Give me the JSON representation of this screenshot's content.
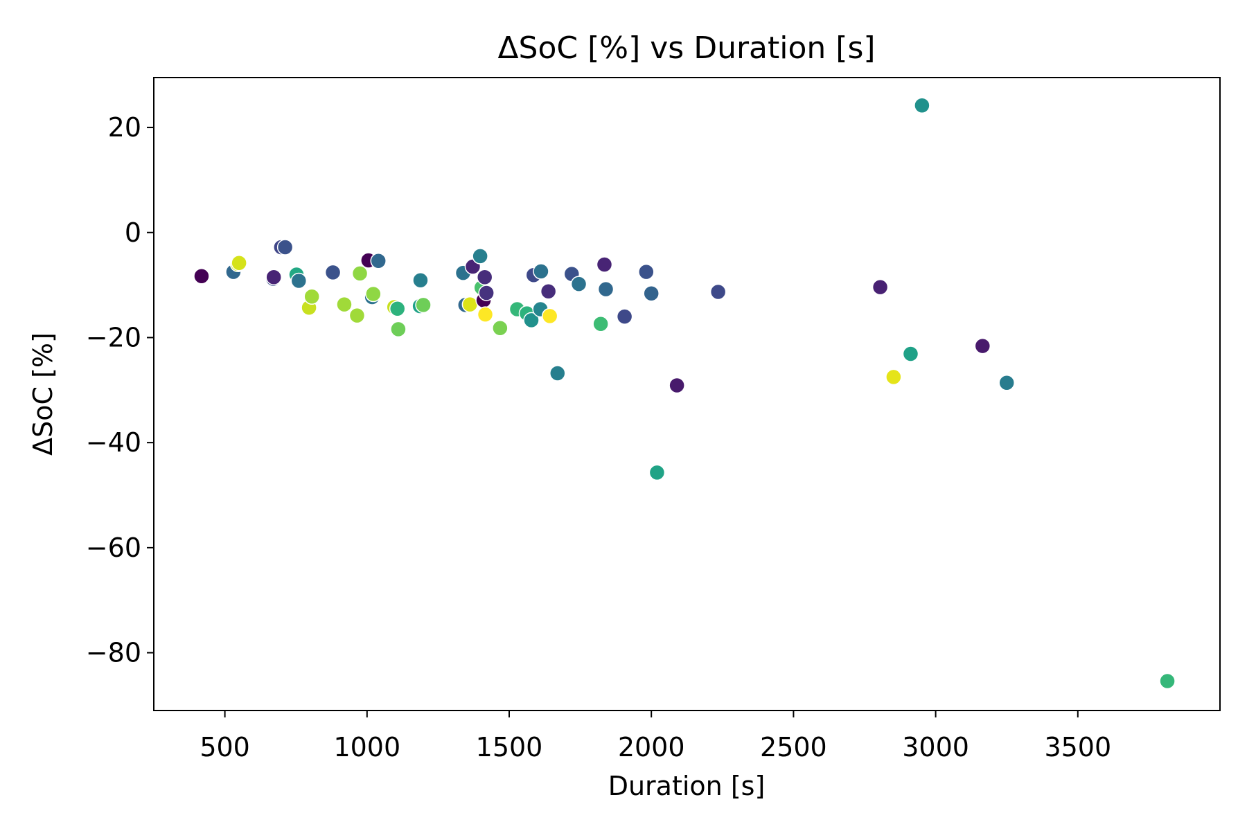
{
  "chart_data": {
    "type": "scatter",
    "title": "ΔSoC [%] vs Duration [s]",
    "xlabel": "Duration [s]",
    "ylabel": "ΔSoC [%]",
    "xlim": [
      250,
      4000
    ],
    "ylim": [
      -91,
      29.5
    ],
    "xticks": [
      500,
      1000,
      1500,
      2000,
      2500,
      3000,
      3500
    ],
    "xtick_labels": [
      "500",
      "1000",
      "1500",
      "2000",
      "2500",
      "3000",
      "3500"
    ],
    "yticks": [
      20,
      0,
      -20,
      -40,
      -60,
      -80
    ],
    "ytick_labels": [
      "20",
      "0",
      "−20",
      "−40",
      "−60",
      "−80"
    ],
    "grid": false,
    "colormap": "viridis",
    "points": [
      {
        "x": 418,
        "y": -8.3,
        "color": "#440154"
      },
      {
        "x": 530,
        "y": -7.5,
        "color": "#31688e"
      },
      {
        "x": 546,
        "y": -6.0,
        "color": "#c8e020"
      },
      {
        "x": 550,
        "y": -5.8,
        "color": "#d5e21a"
      },
      {
        "x": 670,
        "y": -8.8,
        "color": "#3b528b"
      },
      {
        "x": 672,
        "y": -8.5,
        "color": "#482475"
      },
      {
        "x": 698,
        "y": -2.8,
        "color": "#404688"
      },
      {
        "x": 712,
        "y": -2.8,
        "color": "#3b528b"
      },
      {
        "x": 752,
        "y": -8.0,
        "color": "#22a884"
      },
      {
        "x": 760,
        "y": -9.2,
        "color": "#2c728e"
      },
      {
        "x": 796,
        "y": -14.3,
        "color": "#c8e020"
      },
      {
        "x": 806,
        "y": -12.2,
        "color": "#a0da39"
      },
      {
        "x": 880,
        "y": -7.6,
        "color": "#3b528b"
      },
      {
        "x": 920,
        "y": -13.7,
        "color": "#a0da39"
      },
      {
        "x": 965,
        "y": -15.8,
        "color": "#a0da39"
      },
      {
        "x": 975,
        "y": -7.8,
        "color": "#8fd744"
      },
      {
        "x": 1005,
        "y": -5.3,
        "color": "#440154"
      },
      {
        "x": 1018,
        "y": -12.3,
        "color": "#2c728e"
      },
      {
        "x": 1022,
        "y": -11.7,
        "color": "#8fd744"
      },
      {
        "x": 1040,
        "y": -5.4,
        "color": "#31688e"
      },
      {
        "x": 1096,
        "y": -14.2,
        "color": "#c8e020"
      },
      {
        "x": 1107,
        "y": -14.5,
        "color": "#2db27d"
      },
      {
        "x": 1110,
        "y": -18.4,
        "color": "#6ece58"
      },
      {
        "x": 1186,
        "y": -14.0,
        "color": "#1fa187"
      },
      {
        "x": 1188,
        "y": -9.1,
        "color": "#277f8e"
      },
      {
        "x": 1198,
        "y": -13.8,
        "color": "#6ece58"
      },
      {
        "x": 1338,
        "y": -7.7,
        "color": "#2c728e"
      },
      {
        "x": 1346,
        "y": -13.8,
        "color": "#31688e"
      },
      {
        "x": 1362,
        "y": -13.7,
        "color": "#dde318"
      },
      {
        "x": 1372,
        "y": -6.5,
        "color": "#482475"
      },
      {
        "x": 1398,
        "y": -4.5,
        "color": "#277f8e"
      },
      {
        "x": 1403,
        "y": -10.5,
        "color": "#4ac16d"
      },
      {
        "x": 1410,
        "y": -12.9,
        "color": "#440154"
      },
      {
        "x": 1414,
        "y": -8.5,
        "color": "#472d7b"
      },
      {
        "x": 1416,
        "y": -15.6,
        "color": "#fde725"
      },
      {
        "x": 1420,
        "y": -11.5,
        "color": "#46327e"
      },
      {
        "x": 1468,
        "y": -18.2,
        "color": "#7ad151"
      },
      {
        "x": 1528,
        "y": -14.6,
        "color": "#35b779"
      },
      {
        "x": 1562,
        "y": -15.4,
        "color": "#2db27d"
      },
      {
        "x": 1578,
        "y": -16.7,
        "color": "#21918c"
      },
      {
        "x": 1586,
        "y": -8.1,
        "color": "#3e4989"
      },
      {
        "x": 1610,
        "y": -14.6,
        "color": "#25858e"
      },
      {
        "x": 1612,
        "y": -7.4,
        "color": "#2c728e"
      },
      {
        "x": 1638,
        "y": -11.2,
        "color": "#472d7b"
      },
      {
        "x": 1643,
        "y": -15.9,
        "color": "#fde725"
      },
      {
        "x": 1670,
        "y": -26.8,
        "color": "#277f8e"
      },
      {
        "x": 1720,
        "y": -7.9,
        "color": "#3b528b"
      },
      {
        "x": 1745,
        "y": -9.8,
        "color": "#2c728e"
      },
      {
        "x": 1822,
        "y": -17.4,
        "color": "#3dbc74"
      },
      {
        "x": 1835,
        "y": -6.1,
        "color": "#482475"
      },
      {
        "x": 1840,
        "y": -10.8,
        "color": "#31688e"
      },
      {
        "x": 1906,
        "y": -16.0,
        "color": "#3e4989"
      },
      {
        "x": 1982,
        "y": -7.5,
        "color": "#3b528b"
      },
      {
        "x": 2000,
        "y": -11.6,
        "color": "#33638d"
      },
      {
        "x": 2020,
        "y": -45.7,
        "color": "#20a386"
      },
      {
        "x": 2090,
        "y": -29.1,
        "color": "#481a6c"
      },
      {
        "x": 2235,
        "y": -11.3,
        "color": "#3e4989"
      },
      {
        "x": 2805,
        "y": -10.4,
        "color": "#482173"
      },
      {
        "x": 2852,
        "y": -27.5,
        "color": "#e5e419"
      },
      {
        "x": 2912,
        "y": -23.1,
        "color": "#1fa187"
      },
      {
        "x": 2952,
        "y": 24.2,
        "color": "#21918c"
      },
      {
        "x": 3165,
        "y": -21.6,
        "color": "#481a6c"
      },
      {
        "x": 3250,
        "y": -28.6,
        "color": "#287c8e"
      },
      {
        "x": 3815,
        "y": -85.4,
        "color": "#35b779"
      }
    ]
  }
}
